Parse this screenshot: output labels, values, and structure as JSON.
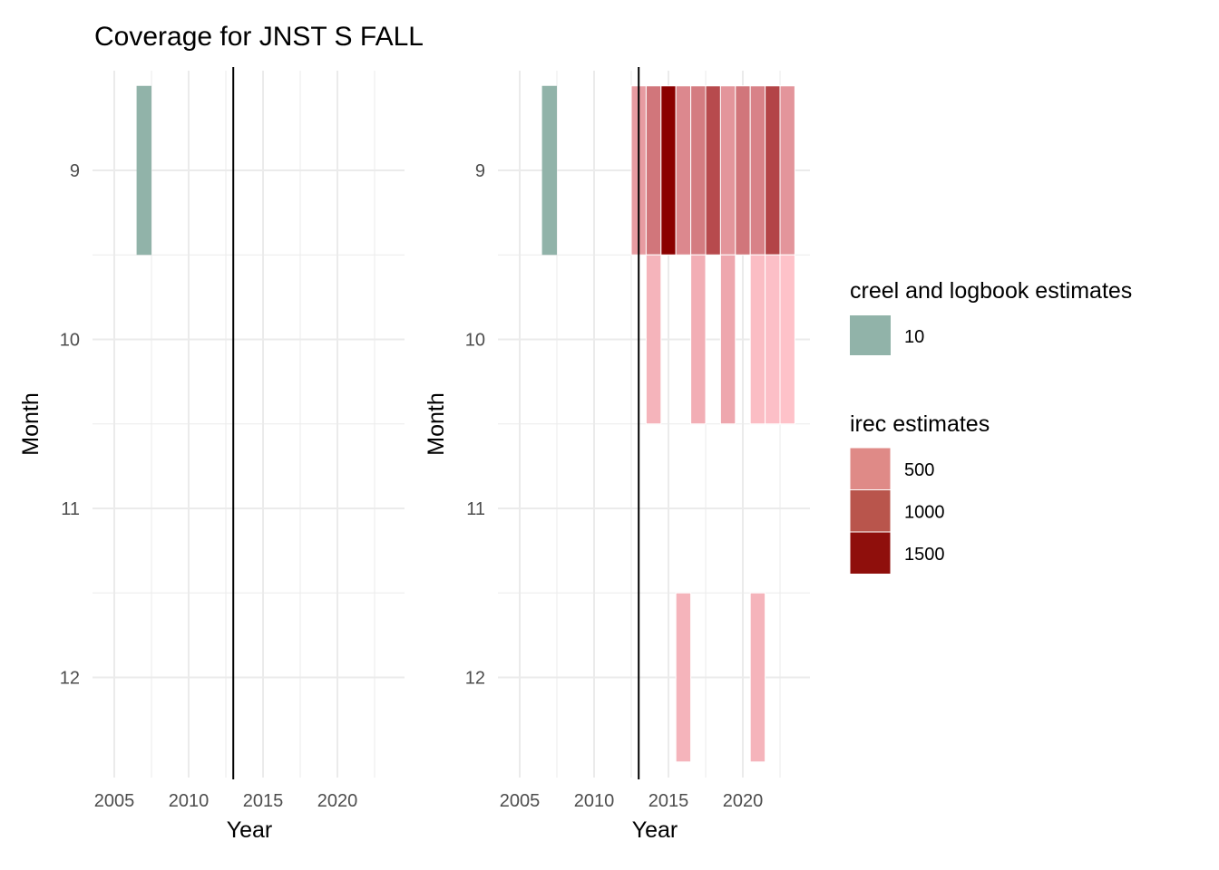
{
  "title": "Coverage for JNST S FALL",
  "chart_data": [
    {
      "type": "heatmap",
      "panel": "left",
      "xlabel": "Year",
      "ylabel": "Month",
      "x_ticks": [
        2005,
        2010,
        2015,
        2020
      ],
      "y_ticks": [
        9,
        10,
        11,
        12
      ],
      "xlim": [
        2004,
        2024
      ],
      "ylim": [
        12.5,
        8.5
      ],
      "vline_year": 2013,
      "grid": true,
      "tiles": [
        {
          "year": 2007,
          "month": 9,
          "source": "creel and logbook estimates",
          "value": 10
        }
      ]
    },
    {
      "type": "heatmap",
      "panel": "right",
      "xlabel": "Year",
      "ylabel": "Month",
      "x_ticks": [
        2005,
        2010,
        2015,
        2020
      ],
      "y_ticks": [
        9,
        10,
        11,
        12
      ],
      "xlim": [
        2004,
        2024
      ],
      "ylim": [
        12.5,
        8.5
      ],
      "vline_year": 2013,
      "grid": true,
      "tiles": [
        {
          "year": 2007,
          "month": 9,
          "source": "creel and logbook estimates",
          "value": 10
        },
        {
          "year": 2013,
          "month": 9,
          "source": "irec estimates",
          "value": 350
        },
        {
          "year": 2014,
          "month": 9,
          "source": "irec estimates",
          "value": 650
        },
        {
          "year": 2015,
          "month": 9,
          "source": "irec estimates",
          "value": 1600
        },
        {
          "year": 2016,
          "month": 9,
          "source": "irec estimates",
          "value": 500
        },
        {
          "year": 2017,
          "month": 9,
          "source": "irec estimates",
          "value": 600
        },
        {
          "year": 2018,
          "month": 9,
          "source": "irec estimates",
          "value": 1000
        },
        {
          "year": 2019,
          "month": 9,
          "source": "irec estimates",
          "value": 400
        },
        {
          "year": 2020,
          "month": 9,
          "source": "irec estimates",
          "value": 650
        },
        {
          "year": 2021,
          "month": 9,
          "source": "irec estimates",
          "value": 550
        },
        {
          "year": 2022,
          "month": 9,
          "source": "irec estimates",
          "value": 1050
        },
        {
          "year": 2023,
          "month": 9,
          "source": "irec estimates",
          "value": 400
        },
        {
          "year": 2014,
          "month": 10,
          "source": "irec estimates",
          "value": 150
        },
        {
          "year": 2017,
          "month": 10,
          "source": "irec estimates",
          "value": 200
        },
        {
          "year": 2019,
          "month": 10,
          "source": "irec estimates",
          "value": 250
        },
        {
          "year": 2021,
          "month": 10,
          "source": "irec estimates",
          "value": 80
        },
        {
          "year": 2022,
          "month": 10,
          "source": "irec estimates",
          "value": 60
        },
        {
          "year": 2023,
          "month": 10,
          "source": "irec estimates",
          "value": 40
        },
        {
          "year": 2016,
          "month": 12,
          "source": "irec estimates",
          "value": 150
        },
        {
          "year": 2021,
          "month": 12,
          "source": "irec estimates",
          "value": 150
        }
      ]
    }
  ],
  "legends": [
    {
      "title": "creel and logbook estimates",
      "entries": [
        {
          "label": "10",
          "color": "#91b3a9"
        }
      ]
    },
    {
      "title": "irec estimates",
      "entries": [
        {
          "label": "500",
          "color": "#df8a87"
        },
        {
          "label": "1000",
          "color": "#b9554c"
        },
        {
          "label": "1500",
          "color": "#8f0f0c"
        }
      ]
    }
  ],
  "colors": {
    "creel": "#91b3a9",
    "irec_low": "#ffc4cc",
    "irec_high": "#8b0000",
    "grid": "#ebebeb",
    "tick_text": "#4d4d4d"
  }
}
